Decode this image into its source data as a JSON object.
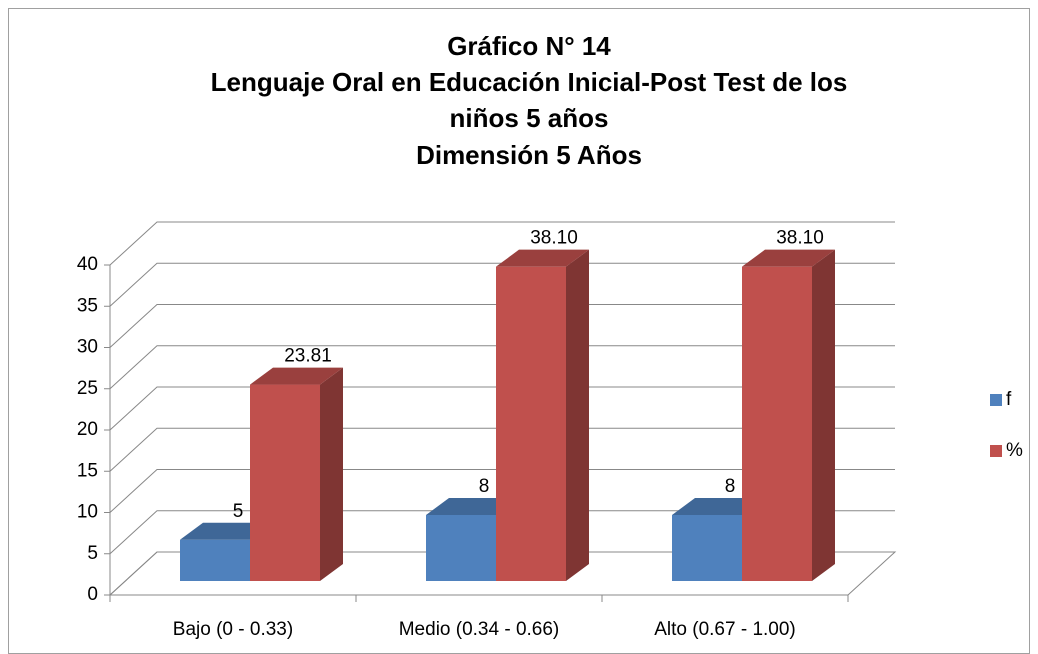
{
  "chart_data": {
    "type": "bar3d",
    "title": [
      "Gráfico N° 14",
      "Lenguaje Oral en Educación Inicial-Post Test de los",
      "niños 5 años",
      "Dimensión 5 Años"
    ],
    "categories": [
      "Bajo (0 - 0.33)",
      "Medio (0.34 - 0.66)",
      "Alto (0.67 - 1.00)"
    ],
    "series": [
      {
        "name": "f",
        "color": "#4f81bd",
        "values": [
          5,
          8,
          8
        ]
      },
      {
        "name": "%",
        "color": "#c0504d",
        "values": [
          23.81,
          38.1,
          38.1
        ],
        "value_labels": [
          "23.81",
          "38.10",
          "38.10"
        ]
      }
    ],
    "ylim": [
      0,
      40
    ],
    "yticks": [
      0,
      5,
      10,
      15,
      20,
      25,
      30,
      35,
      40
    ],
    "grid": true,
    "legend": "right"
  }
}
